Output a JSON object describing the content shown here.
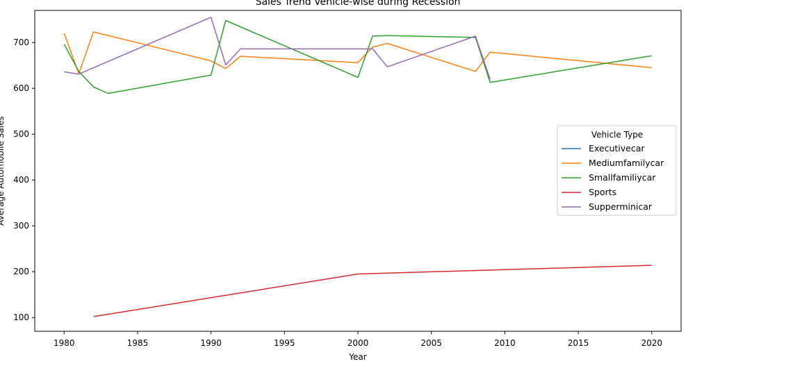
{
  "chart_data": {
    "type": "line",
    "title": "Sales Trend Vehicle-wise during Recession",
    "xlabel": "Year",
    "ylabel": "Average Automobile Sales",
    "xlim": [
      1978,
      2022
    ],
    "ylim": [
      70,
      770
    ],
    "xticks": [
      1980,
      1985,
      1990,
      1995,
      2000,
      2005,
      2010,
      2015,
      2020
    ],
    "yticks": [
      100,
      200,
      300,
      400,
      500,
      600,
      700
    ],
    "grid": false,
    "legend": {
      "title": "Vehicle Type",
      "position": "center-right"
    },
    "series": [
      {
        "name": "Executivecar",
        "color": "#1f77b4",
        "points": []
      },
      {
        "name": "Mediumfamilycar",
        "color": "#ff7f0e",
        "points": [
          [
            1980,
            720
          ],
          [
            1981,
            632
          ],
          [
            1982,
            723
          ],
          [
            1990,
            660
          ],
          [
            1991,
            643
          ],
          [
            1992,
            670
          ],
          [
            2000,
            656
          ],
          [
            2001,
            690
          ],
          [
            2002,
            698
          ],
          [
            2008,
            637
          ],
          [
            2009,
            679
          ],
          [
            2020,
            645
          ]
        ]
      },
      {
        "name": "Smallfamiliycar",
        "color": "#2ca02c",
        "points": [
          [
            1980,
            696
          ],
          [
            1981,
            637
          ],
          [
            1982,
            603
          ],
          [
            1983,
            589
          ],
          [
            1990,
            629
          ],
          [
            1991,
            748
          ],
          [
            2000,
            624
          ],
          [
            2001,
            714
          ],
          [
            2002,
            715
          ],
          [
            2008,
            711
          ],
          [
            2009,
            613
          ],
          [
            2020,
            671
          ]
        ]
      },
      {
        "name": "Sports",
        "color": "#d62728",
        "points": [
          [
            1982,
            102
          ],
          [
            2000,
            195
          ],
          [
            2020,
            214
          ]
        ]
      },
      {
        "name": "Supperminicar",
        "color": "#9467bd",
        "points": [
          [
            1980,
            636
          ],
          [
            1981,
            631
          ],
          [
            1990,
            755
          ],
          [
            1991,
            651
          ],
          [
            1992,
            686
          ],
          [
            2001,
            686
          ],
          [
            2002,
            647
          ],
          [
            2008,
            714
          ],
          [
            2009,
            620
          ]
        ]
      }
    ]
  }
}
